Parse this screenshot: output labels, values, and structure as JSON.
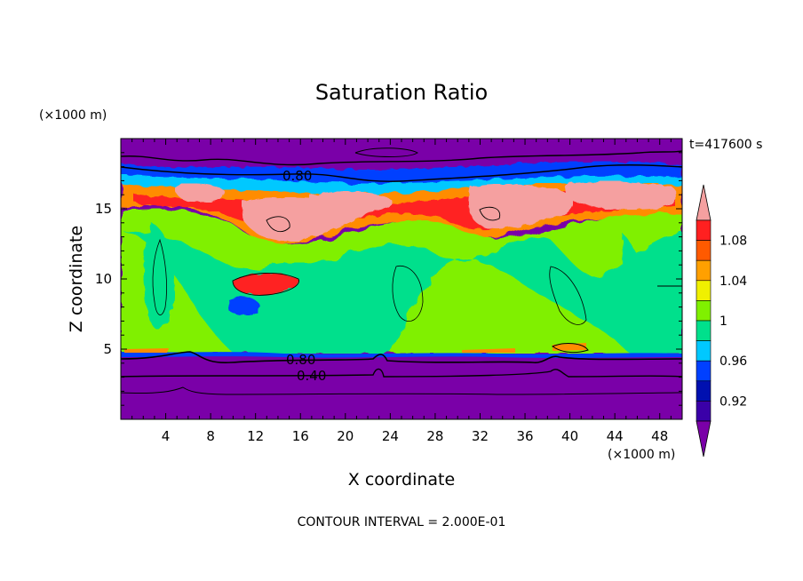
{
  "chart_data": {
    "type": "heatmap",
    "title": "Saturation Ratio",
    "xlabel": "X coordinate",
    "ylabel": "Z coordinate",
    "x_unit": "(×1000 m)",
    "y_unit": "(×1000 m)",
    "time_label": "t=417600 s",
    "footer": "CONTOUR INTERVAL = 2.000E-01",
    "xlim": [
      0,
      50
    ],
    "ylim": [
      0,
      20
    ],
    "xticks": [
      4,
      8,
      12,
      16,
      20,
      24,
      28,
      32,
      36,
      40,
      44,
      48
    ],
    "yticks": [
      5,
      10,
      15
    ],
    "contour_labels": [
      {
        "text": "0.80",
        "x": 15.9,
        "z": 17.4
      },
      {
        "text": "0.80",
        "x": 16.1,
        "z": 4.4
      },
      {
        "text": "0.40",
        "x": 17.0,
        "z": 3.1
      }
    ],
    "colorbar": {
      "levels": [
        0.9,
        0.92,
        0.94,
        0.96,
        0.98,
        1.0,
        1.02,
        1.04,
        1.06,
        1.08,
        1.1
      ],
      "tick_labels": [
        "0.92",
        "0.96",
        "1",
        "1.04",
        "1.08"
      ],
      "tick_values": [
        0.92,
        0.96,
        1.0,
        1.04,
        1.08
      ],
      "colors": [
        "#7a00a8",
        "#3a00a8",
        "#0010b0",
        "#0040ff",
        "#00c8ff",
        "#00e08c",
        "#80f000",
        "#f0f000",
        "#ffa000",
        "#ff5a00",
        "#ff2020",
        "#f5a0a0"
      ]
    },
    "field_colors": {
      "strat": "#7a00a8",
      "upper_blue": "#0040ff",
      "upper_cyan": "#00c8ff",
      "upper_orange": "#ff8c00",
      "upper_red": "#ff2020",
      "ice_pink": "#f5a0a0",
      "lime": "#80f000",
      "green": "#00e08c",
      "boundary_purple": "#7a00a8"
    }
  }
}
